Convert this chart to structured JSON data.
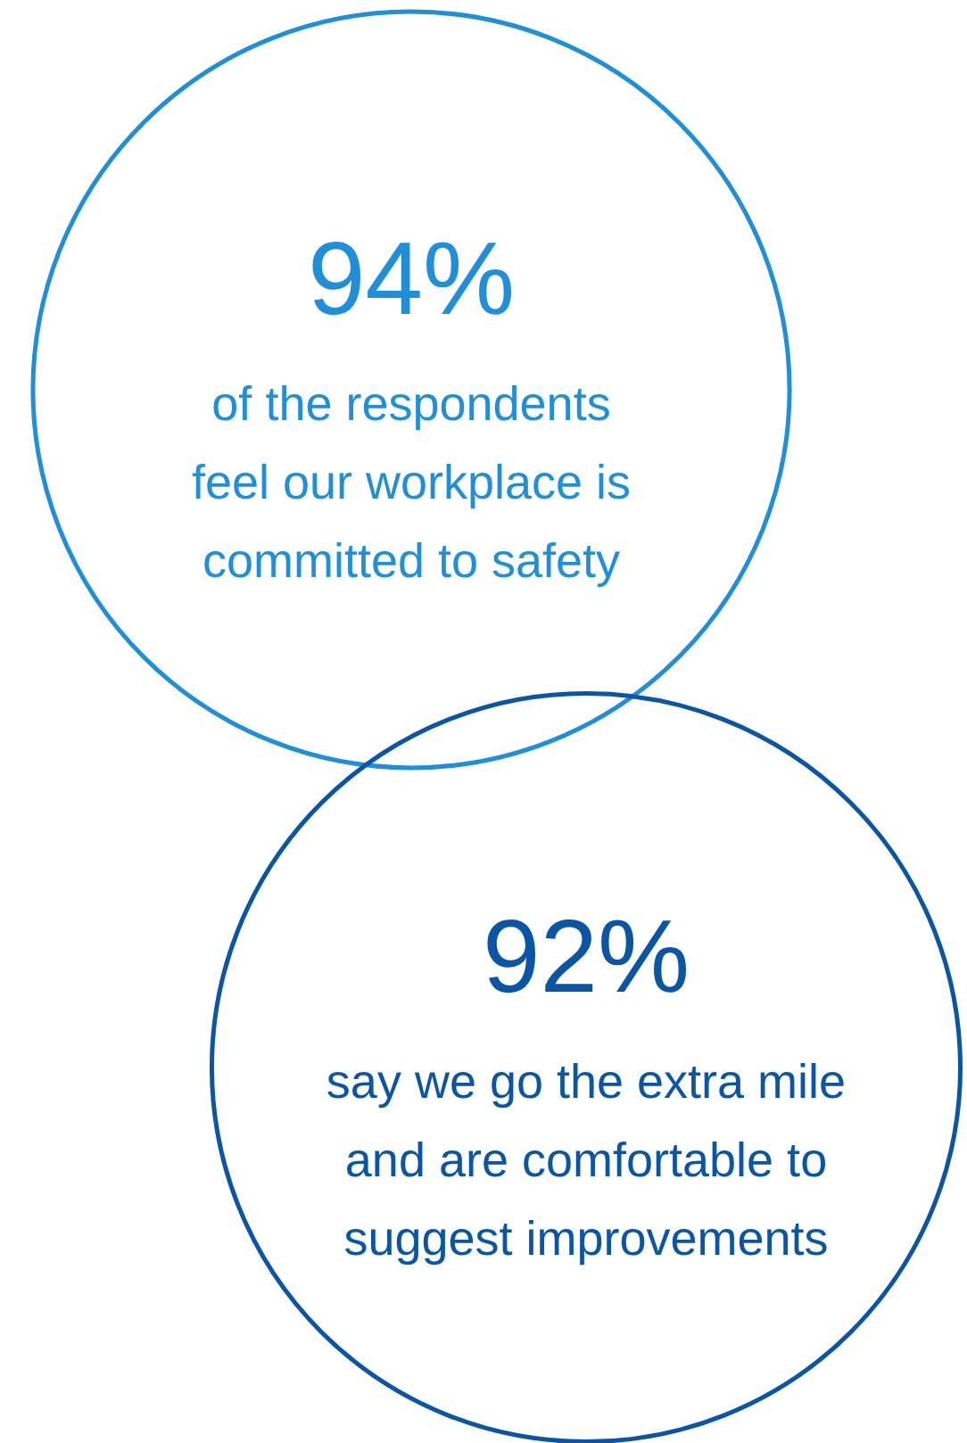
{
  "chart_data": {
    "type": "other",
    "categories": [
      "of the respondents\nfeel our workplace is\ncommitted to safety",
      "say we go the extra mile\nand are comfortable to\nsuggest improvements"
    ],
    "values": [
      94,
      92
    ],
    "value_labels": [
      "94%",
      "92%"
    ],
    "colors": [
      "#1e8fd8",
      "#0b55a6"
    ]
  }
}
